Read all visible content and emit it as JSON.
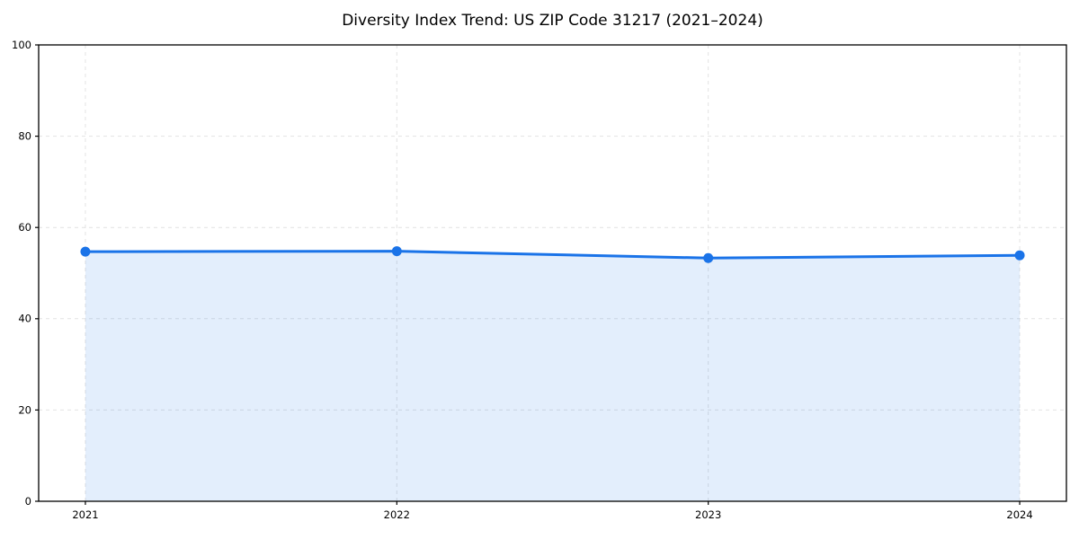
{
  "chart_data": {
    "type": "area",
    "title": "Diversity Index Trend: US ZIP Code 31217 (2021–2024)",
    "series_name": "Diversity Index",
    "x": [
      2021,
      2022,
      2023,
      2024
    ],
    "values": [
      54.7,
      54.8,
      53.3,
      53.9
    ],
    "xlabel": "",
    "ylabel": "",
    "xlim": [
      2020.85,
      2024.15
    ],
    "ylim": [
      0,
      100
    ],
    "xticks": [
      2021,
      2022,
      2023,
      2024
    ],
    "yticks": [
      0,
      20,
      40,
      60,
      80,
      100
    ],
    "grid": true,
    "grid_style": "dashed",
    "legend": false,
    "colors": {
      "line": "#1a73e8",
      "marker": "#1a73e8",
      "fill": "#1a73e8",
      "fill_opacity": 0.12,
      "grid": "#e2e2e2",
      "axis": "#000000",
      "text": "#000000",
      "background": "#ffffff"
    }
  }
}
